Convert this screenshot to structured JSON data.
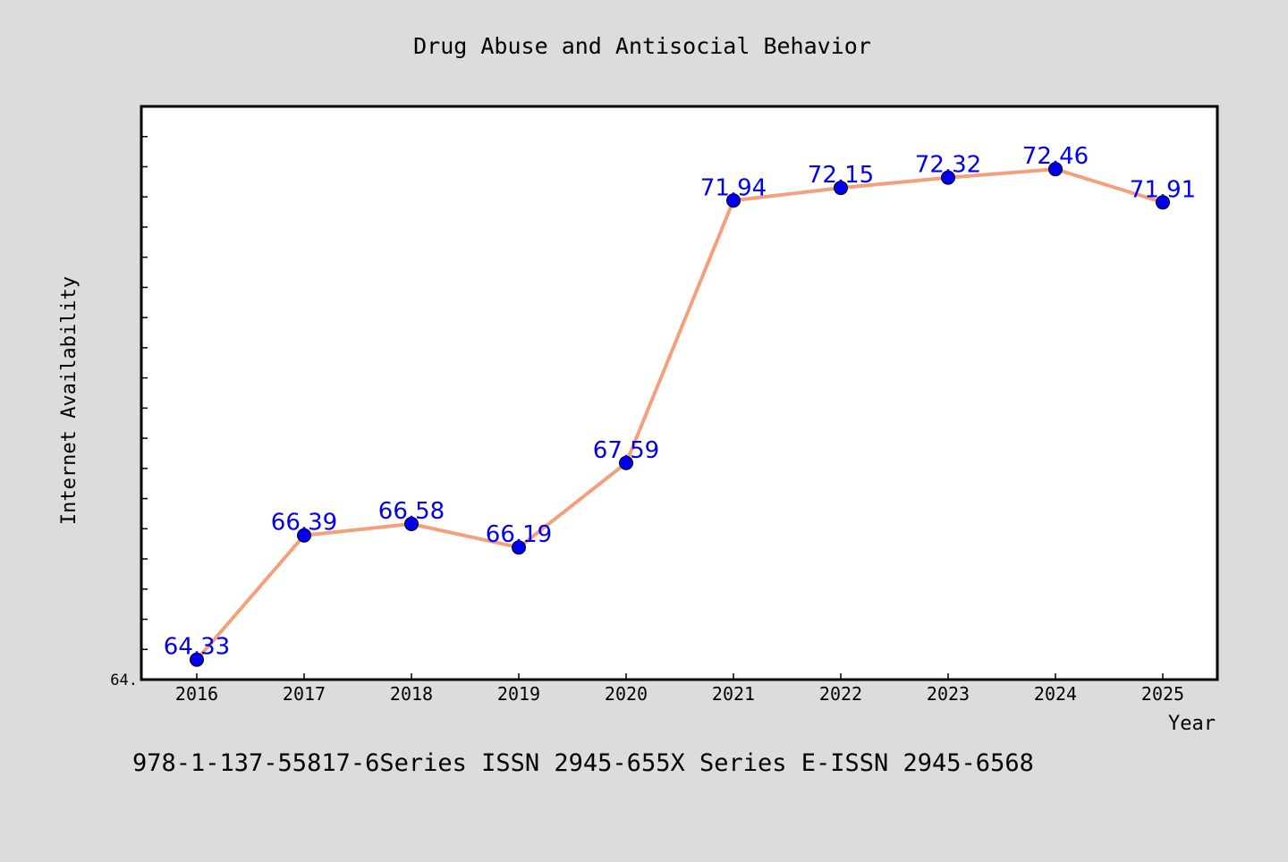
{
  "chart_data": {
    "type": "line",
    "title": "Drug Abuse and Antisocial Behavior",
    "xlabel": "Year",
    "ylabel": "Internet Availability",
    "categories": [
      "2016",
      "2017",
      "2018",
      "2019",
      "2020",
      "2021",
      "2022",
      "2023",
      "2024",
      "2025"
    ],
    "values": [
      64.33,
      66.39,
      66.58,
      66.19,
      67.59,
      71.94,
      72.15,
      72.32,
      72.46,
      71.91
    ],
    "data_labels": [
      "64.33",
      "66.39",
      "66.58",
      "66.19",
      "67.59",
      "71.94",
      "72.15",
      "72.32",
      "72.46",
      "71.91"
    ],
    "y_tick_labels": [
      "64."
    ],
    "ylim": [
      64.0,
      73.5
    ],
    "grid": false,
    "line_color": "#f4a07c",
    "marker_color": "#0000ee",
    "label_color": "#0000ee"
  },
  "footer": {
    "text": "978-1-137-55817-6Series ISSN 2945-655X Series E-ISSN 2945-6568"
  }
}
